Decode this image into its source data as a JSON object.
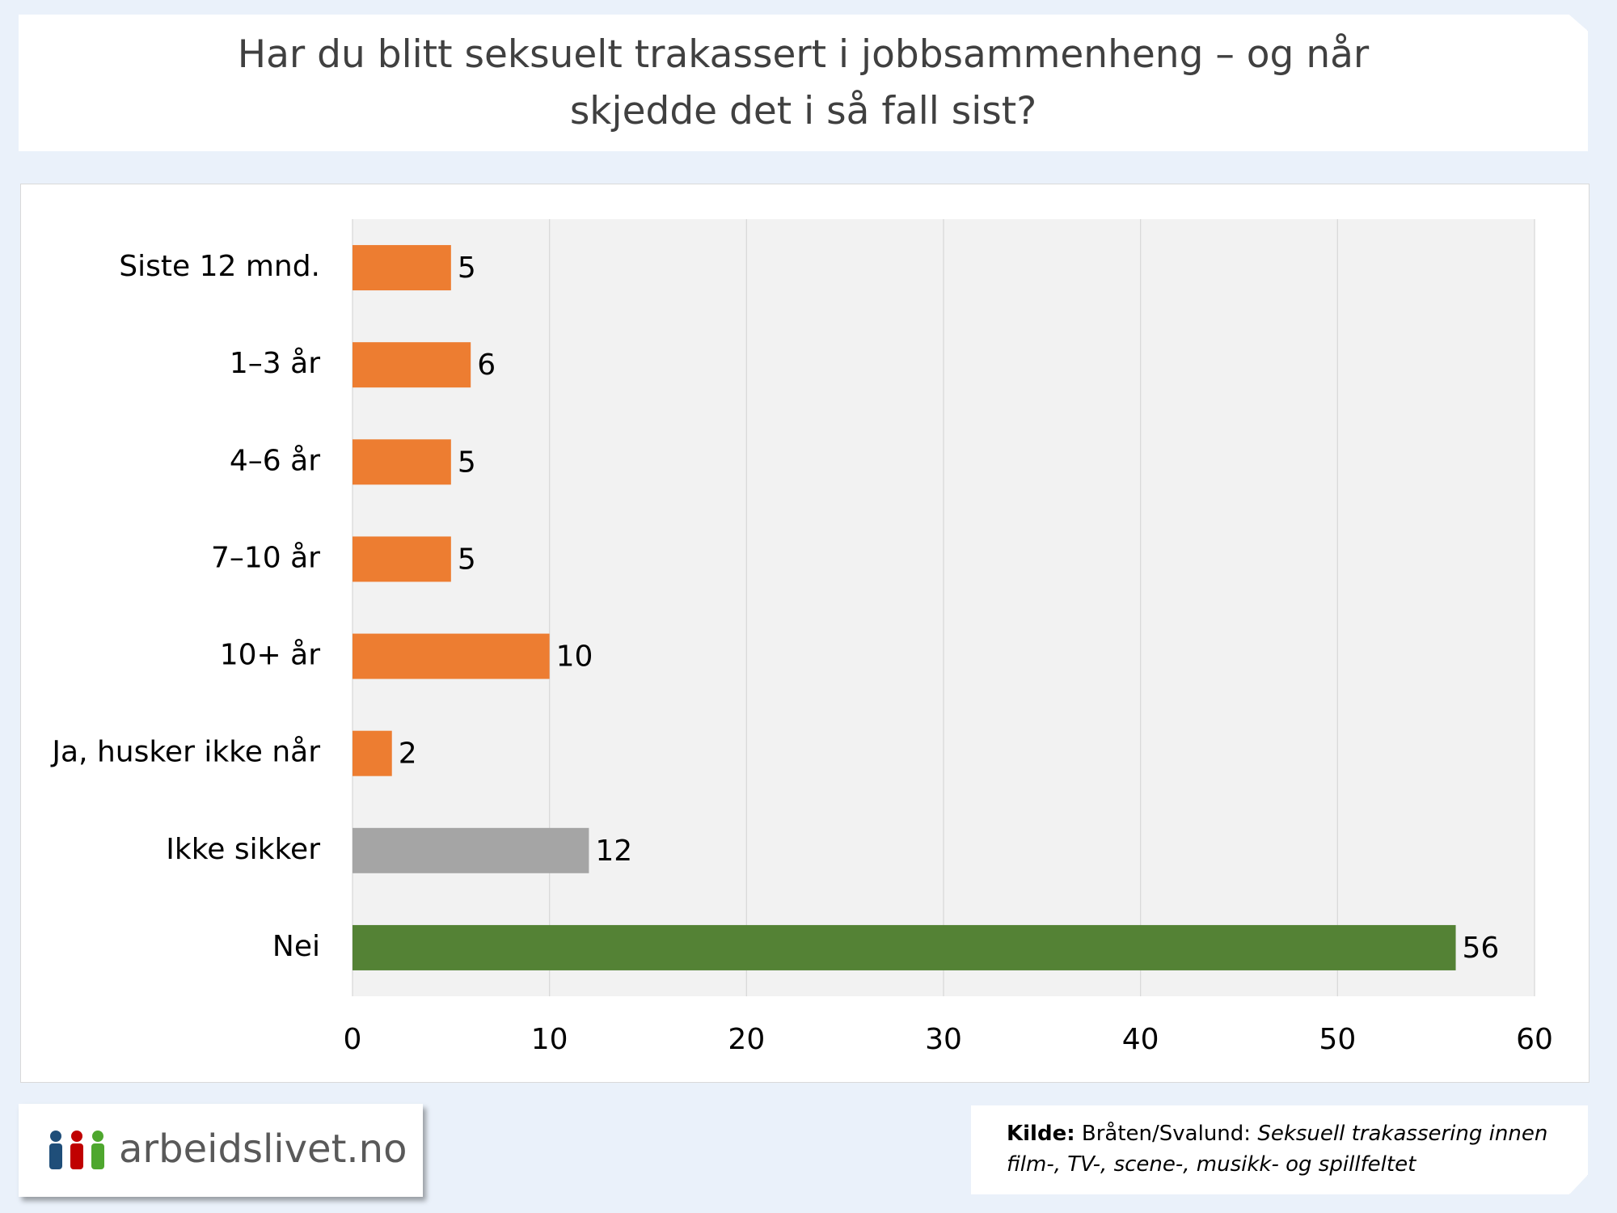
{
  "chart_data": {
    "type": "bar",
    "orientation": "horizontal",
    "title": "Har du blitt seksuelt trakassert i jobbsammenheng – og når skjedde det i så fall sist?",
    "categories": [
      "Siste 12 mnd.",
      "1–3 år",
      "4–6 år",
      "7–10 år",
      "10+ år",
      "Ja, husker ikke når",
      "Ikke sikker",
      "Nei"
    ],
    "values": [
      5,
      6,
      5,
      5,
      10,
      2,
      12,
      56
    ],
    "colors": [
      "#ed7d31",
      "#ed7d31",
      "#ed7d31",
      "#ed7d31",
      "#ed7d31",
      "#ed7d31",
      "#a5a5a5",
      "#548235"
    ],
    "xlim": [
      0,
      60
    ],
    "xticks": [
      0,
      10,
      20,
      30,
      40,
      50,
      60
    ],
    "grid": true
  },
  "footer": {
    "logo": "arbeidslivet.no",
    "source": {
      "label": "Kilde:",
      "author": "Bråten/Svalund:",
      "work": "Seksuell trakassering innen film-, TV-, scene-, musikk- og spillfeltet"
    }
  }
}
